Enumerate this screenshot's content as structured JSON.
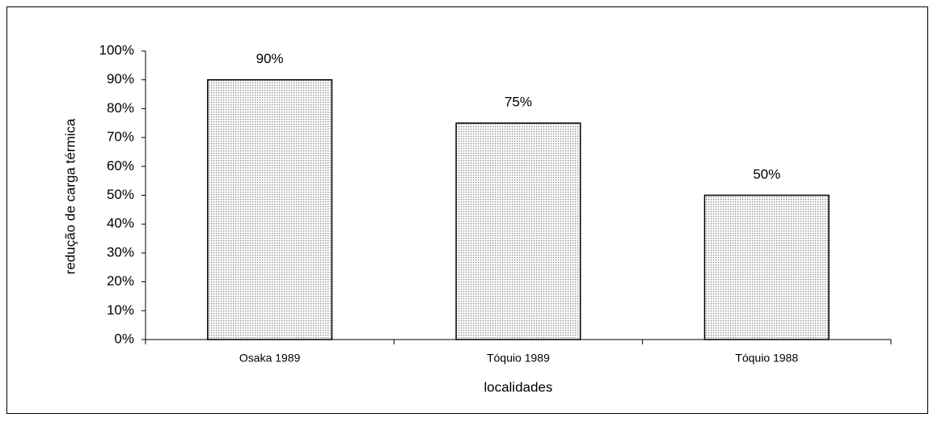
{
  "chart_data": {
    "type": "bar",
    "categories": [
      "Osaka 1989",
      "Tóquio 1989",
      "Tóquio 1988"
    ],
    "values": [
      90,
      75,
      50
    ],
    "value_labels": [
      "90%",
      "75%",
      "50%"
    ],
    "color": "#8c8c8c",
    "xlabel": "localidades",
    "ylabel": "redução de carga térmica",
    "ylim": [
      0,
      100
    ],
    "yticks": [
      {
        "value": 0,
        "label": "0%"
      },
      {
        "value": 10,
        "label": "10%"
      },
      {
        "value": 20,
        "label": "20%"
      },
      {
        "value": 30,
        "label": "30%"
      },
      {
        "value": 40,
        "label": "40%"
      },
      {
        "value": 50,
        "label": "50%"
      },
      {
        "value": 60,
        "label": "60%"
      },
      {
        "value": 70,
        "label": "70%"
      },
      {
        "value": 80,
        "label": "80%"
      },
      {
        "value": 90,
        "label": "90%"
      },
      {
        "value": 100,
        "label": "100%"
      }
    ],
    "grid": false
  }
}
